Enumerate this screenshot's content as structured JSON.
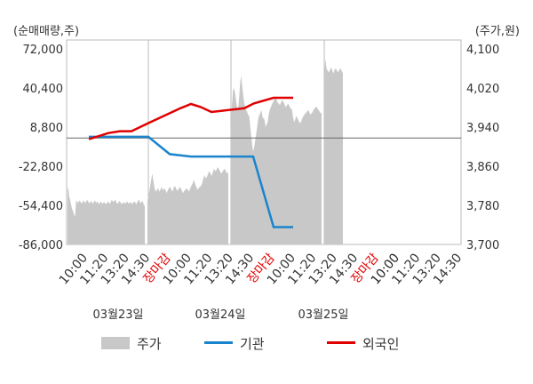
{
  "chart_data": {
    "type": "line",
    "left_axis_label": "(순매매량,주)",
    "right_axis_label": "(주가,원)",
    "left_ticks": [
      "72,000",
      "40,400",
      "8,800",
      "-22,800",
      "-54,400",
      "-86,000"
    ],
    "left_tick_values": [
      72000,
      40400,
      8800,
      -22800,
      -54400,
      -86000
    ],
    "right_ticks": [
      "4,100",
      "4,020",
      "3,940",
      "3,860",
      "3,780",
      "3,700"
    ],
    "right_tick_values": [
      4100,
      4020,
      3940,
      3860,
      3780,
      3700
    ],
    "ylim_left": [
      -86000,
      72000
    ],
    "ylim_right": [
      3700,
      4100
    ],
    "x_tick_labels": [
      {
        "text": "10:00",
        "color": "#333333"
      },
      {
        "text": "11:20",
        "color": "#333333"
      },
      {
        "text": "13:20",
        "color": "#333333"
      },
      {
        "text": "14:30",
        "color": "#333333"
      },
      {
        "text": "장마감",
        "color": "#e00000"
      },
      {
        "text": "10:00",
        "color": "#333333"
      },
      {
        "text": "11:20",
        "color": "#333333"
      },
      {
        "text": "13:20",
        "color": "#333333"
      },
      {
        "text": "14:30",
        "color": "#333333"
      },
      {
        "text": "장마감",
        "color": "#e00000"
      },
      {
        "text": "10:00",
        "color": "#333333"
      },
      {
        "text": "11:20",
        "color": "#333333"
      },
      {
        "text": "13:20",
        "color": "#333333"
      },
      {
        "text": "14:30",
        "color": "#333333"
      },
      {
        "text": "장마감",
        "color": "#e00000"
      },
      {
        "text": "10:00",
        "color": "#222222"
      },
      {
        "text": "11:20",
        "color": "#333333"
      },
      {
        "text": "13:20",
        "color": "#333333"
      },
      {
        "text": "14:30",
        "color": "#333333"
      }
    ],
    "dates": [
      "03월23일",
      "03월24일",
      "03월25일"
    ],
    "legend": [
      {
        "name": "주가",
        "color": "#c8c8c8",
        "kind": "area"
      },
      {
        "name": "기관",
        "color": "#1a84cc",
        "kind": "line"
      },
      {
        "name": "외국인",
        "color": "#e00000",
        "kind": "line"
      }
    ],
    "foreign": [
      -1000,
      1500,
      4000,
      5500,
      5500,
      12000,
      20000,
      24000,
      27500,
      25000,
      21000,
      22000,
      23000,
      24000,
      28000,
      32500,
      32500
    ],
    "institution": [
      1000,
      1000,
      1000,
      1000,
      1000,
      -13000,
      -14000,
      -15000,
      -15000,
      -15000,
      -15000,
      -15000,
      -72000,
      -72000
    ],
    "price_segments": [
      [
        3817,
        3812,
        3798,
        3791,
        3783,
        3775,
        3770,
        3765,
        3760,
        3758,
        3790,
        3788,
        3785,
        3787,
        3790,
        3788,
        3786,
        3783,
        3788,
        3790,
        3787,
        3784,
        3788,
        3791,
        3789,
        3786,
        3784,
        3787,
        3789,
        3786,
        3783,
        3787,
        3790,
        3788,
        3785,
        3788,
        3786,
        3782,
        3785,
        3788,
        3786,
        3783,
        3785,
        3787,
        3785,
        3782,
        3784,
        3786,
        3788,
        3785,
        3783,
        3787,
        3791,
        3789,
        3787,
        3789,
        3792,
        3788,
        3785,
        3783,
        3786,
        3789,
        3787,
        3785,
        3782,
        3784,
        3787,
        3785,
        3783,
        3786,
        3788,
        3786,
        3783,
        3785,
        3787,
        3785,
        3782,
        3785,
        3787,
        3788,
        3785,
        3782,
        3786,
        3790,
        3792,
        3788,
        3784,
        3787,
        3789,
        3786,
        3780,
        3779
      ],
      [
        3790,
        3800,
        3815,
        3830,
        3845,
        3830,
        3815,
        3808,
        3812,
        3815,
        3808,
        3812,
        3818,
        3810,
        3815,
        3812,
        3805,
        3810,
        3815,
        3818,
        3812,
        3808,
        3815,
        3820,
        3815,
        3810,
        3812,
        3818,
        3815,
        3810,
        3805,
        3810,
        3812,
        3815,
        3812,
        3808,
        3815,
        3820,
        3825,
        3832,
        3825,
        3818,
        3812,
        3815,
        3818,
        3820,
        3825,
        3835,
        3842,
        3835,
        3838,
        3845,
        3850,
        3845,
        3840,
        3848,
        3855,
        3850,
        3852,
        3858,
        3855,
        3850,
        3845,
        3848,
        3852,
        3855,
        3850,
        3845,
        3848
      ],
      [
        3945,
        3985,
        4015,
        4020,
        4010,
        3995,
        3980,
        3975,
        4000,
        4030,
        4045,
        4025,
        4005,
        3990,
        3980,
        3975,
        3970,
        3965,
        3962,
        3940,
        3920,
        3900,
        3890,
        3902,
        3915,
        3930,
        3945,
        3960,
        3965,
        3970,
        3975,
        3960,
        3958,
        3955,
        3940,
        3945,
        3950,
        3965,
        3975,
        3980,
        3985,
        3990,
        3995,
        3998,
        4000,
        3995,
        3990,
        3988,
        3985,
        3990,
        3995,
        3993,
        3990,
        3985,
        3980,
        3985,
        3988,
        3985,
        3980,
        3978,
        3975,
        3960,
        3950,
        3955,
        3962,
        3960,
        3955,
        3950,
        3948,
        3952,
        3958,
        3962,
        3965,
        3968,
        3970,
        3973,
        3975,
        3970,
        3966,
        3968,
        3970,
        3975,
        3978,
        3980,
        3982,
        3978,
        3975,
        3972,
        3968,
        3970
      ],
      [
        4045,
        4080,
        4060,
        4055,
        4052,
        4058,
        4062,
        4055,
        4050,
        4058,
        4060,
        4055,
        4052,
        4058,
        4060,
        4055,
        4050
      ]
    ]
  }
}
